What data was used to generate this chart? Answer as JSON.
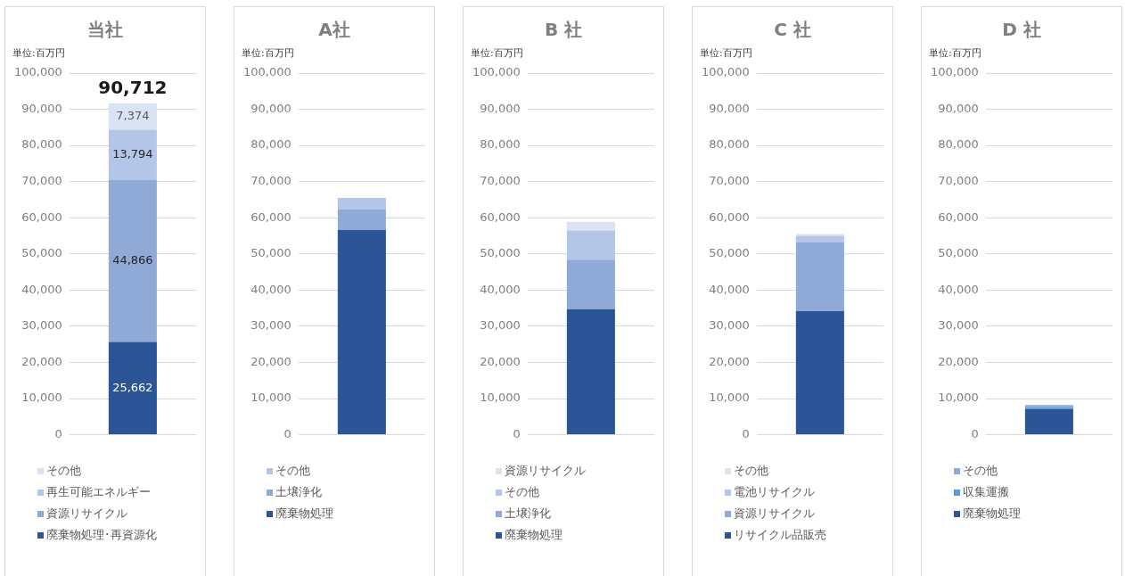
{
  "chart_data": [
    {
      "type": "bar",
      "title": "当社",
      "ylabel": "単位:百万円",
      "stacked": true,
      "categories": [
        null
      ],
      "ylim": [
        0,
        100000
      ],
      "yticks": [
        {
          "value": 0,
          "label": "0"
        },
        {
          "value": 10000,
          "label": "10,000"
        },
        {
          "value": 20000,
          "label": "20,000"
        },
        {
          "value": 30000,
          "label": "30,000"
        },
        {
          "value": 40000,
          "label": "40,000"
        },
        {
          "value": 50000,
          "label": "50,000"
        },
        {
          "value": 60000,
          "label": "60,000"
        },
        {
          "value": 70000,
          "label": "70,000"
        },
        {
          "value": 80000,
          "label": "80,000"
        },
        {
          "value": 90000,
          "label": "90,000"
        },
        {
          "value": 100000,
          "label": "100,000"
        }
      ],
      "grid": "y",
      "legend": "bottom",
      "annotations": [
        {
          "text": "90,712",
          "y": 91696
        }
      ],
      "series": [
        {
          "name": "廃棄物処理･再資源化",
          "color": "#2b5597",
          "values": [
            25662
          ],
          "value_labels": [
            "25,662"
          ]
        },
        {
          "name": "資源リサイクル",
          "color": "#8faad7",
          "values": [
            44866
          ],
          "value_labels": [
            "44,866"
          ]
        },
        {
          "name": "再生可能エネルギー",
          "color": "#b3c6e7",
          "values": [
            13794
          ],
          "value_labels": [
            "13,794"
          ]
        },
        {
          "name": "その他",
          "color": "#dae3f3",
          "values": [
            7374
          ],
          "value_labels": [
            "7,374"
          ]
        }
      ]
    },
    {
      "type": "bar",
      "title": "A社",
      "ylabel": "単位:百万円",
      "stacked": true,
      "categories": [
        null
      ],
      "ylim": [
        0,
        100000
      ],
      "yticks": [
        {
          "value": 0,
          "label": "0"
        },
        {
          "value": 10000,
          "label": "10,000"
        },
        {
          "value": 20000,
          "label": "20,000"
        },
        {
          "value": 30000,
          "label": "30,000"
        },
        {
          "value": 40000,
          "label": "40,000"
        },
        {
          "value": 50000,
          "label": "50,000"
        },
        {
          "value": 60000,
          "label": "60,000"
        },
        {
          "value": 70000,
          "label": "70,000"
        },
        {
          "value": 80000,
          "label": "80,000"
        },
        {
          "value": 90000,
          "label": "90,000"
        },
        {
          "value": 100000,
          "label": "100,000"
        }
      ],
      "grid": "y",
      "legend": "bottom",
      "series": [
        {
          "name": "廃棄物処理",
          "color": "#2b5597",
          "values": [
            56700
          ]
        },
        {
          "name": "土壌浄化",
          "color": "#8faad7",
          "values": [
            5700
          ]
        },
        {
          "name": "その他",
          "color": "#b3c6e7",
          "values": [
            3100
          ]
        }
      ]
    },
    {
      "type": "bar",
      "title": "B 社",
      "ylabel": "単位:百万円",
      "stacked": true,
      "categories": [
        null
      ],
      "ylim": [
        0,
        100000
      ],
      "yticks": [
        {
          "value": 0,
          "label": "0"
        },
        {
          "value": 10000,
          "label": "10,000"
        },
        {
          "value": 20000,
          "label": "20,000"
        },
        {
          "value": 30000,
          "label": "30,000"
        },
        {
          "value": 40000,
          "label": "40,000"
        },
        {
          "value": 50000,
          "label": "50,000"
        },
        {
          "value": 60000,
          "label": "60,000"
        },
        {
          "value": 70000,
          "label": "70,000"
        },
        {
          "value": 80000,
          "label": "80,000"
        },
        {
          "value": 90000,
          "label": "90,000"
        },
        {
          "value": 100000,
          "label": "100,000"
        }
      ],
      "grid": "y",
      "legend": "bottom",
      "series": [
        {
          "name": "廃棄物処理",
          "color": "#2b5597",
          "values": [
            34700
          ]
        },
        {
          "name": "土壌浄化",
          "color": "#8faad7",
          "values": [
            13700
          ]
        },
        {
          "name": "その他",
          "color": "#b3c6e7",
          "values": [
            8100
          ]
        },
        {
          "name": "資源リサイクル",
          "color": "#dae3f3",
          "values": [
            2400
          ]
        }
      ]
    },
    {
      "type": "bar",
      "title": "C 社",
      "ylabel": "単位:百万円",
      "stacked": true,
      "categories": [
        null
      ],
      "ylim": [
        0,
        100000
      ],
      "yticks": [
        {
          "value": 0,
          "label": "0"
        },
        {
          "value": 10000,
          "label": "10,000"
        },
        {
          "value": 20000,
          "label": "20,000"
        },
        {
          "value": 30000,
          "label": "30,000"
        },
        {
          "value": 40000,
          "label": "40,000"
        },
        {
          "value": 50000,
          "label": "50,000"
        },
        {
          "value": 60000,
          "label": "60,000"
        },
        {
          "value": 70000,
          "label": "70,000"
        },
        {
          "value": 80000,
          "label": "80,000"
        },
        {
          "value": 90000,
          "label": "90,000"
        },
        {
          "value": 100000,
          "label": "100,000"
        }
      ],
      "grid": "y",
      "legend": "bottom",
      "series": [
        {
          "name": "リサイクル品販売",
          "color": "#2b5597",
          "values": [
            34200
          ]
        },
        {
          "name": "資源リサイクル",
          "color": "#8faad7",
          "values": [
            19100
          ]
        },
        {
          "name": "電池リサイクル",
          "color": "#b3c6e7",
          "values": [
            1700
          ]
        },
        {
          "name": "その他",
          "color": "#dae3f3",
          "values": [
            500
          ]
        }
      ]
    },
    {
      "type": "bar",
      "title": "D 社",
      "ylabel": "単位:百万円",
      "stacked": true,
      "categories": [
        null
      ],
      "ylim": [
        0,
        100000
      ],
      "yticks": [
        {
          "value": 0,
          "label": "0"
        },
        {
          "value": 10000,
          "label": "10,000"
        },
        {
          "value": 20000,
          "label": "20,000"
        },
        {
          "value": 30000,
          "label": "30,000"
        },
        {
          "value": 40000,
          "label": "40,000"
        },
        {
          "value": 50000,
          "label": "50,000"
        },
        {
          "value": 60000,
          "label": "60,000"
        },
        {
          "value": 70000,
          "label": "70,000"
        },
        {
          "value": 80000,
          "label": "80,000"
        },
        {
          "value": 90000,
          "label": "90,000"
        },
        {
          "value": 100000,
          "label": "100,000"
        }
      ],
      "grid": "y",
      "legend": "bottom",
      "series": [
        {
          "name": "廃棄物処理",
          "color": "#2b5597",
          "values": [
            7100
          ]
        },
        {
          "name": "収集運搬",
          "color": "#5b9bd5",
          "values": [
            500
          ]
        },
        {
          "name": "その他",
          "color": "#8faad7",
          "values": [
            600
          ]
        }
      ]
    }
  ]
}
